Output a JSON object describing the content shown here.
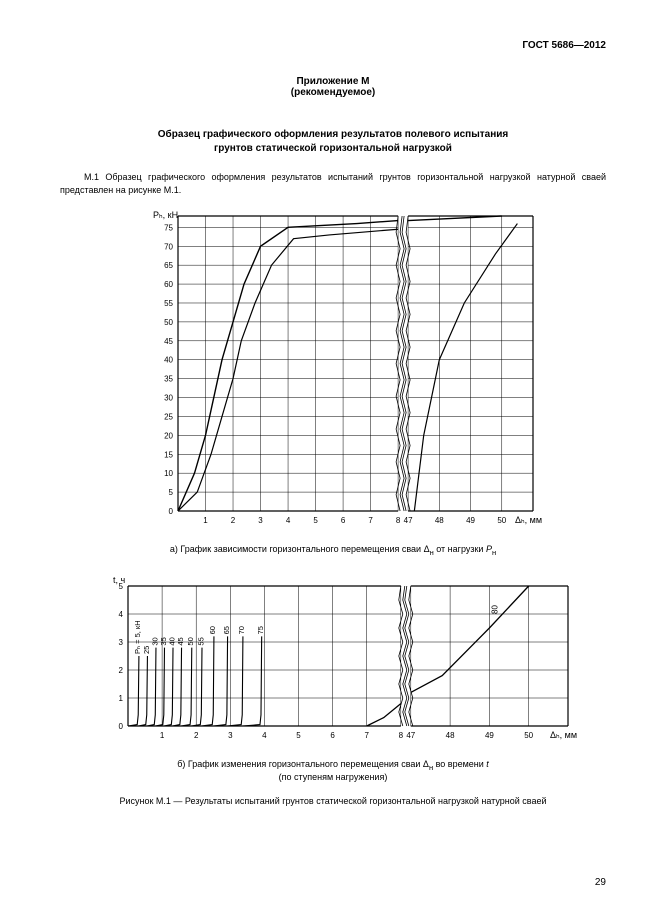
{
  "doc_id": "ГОСТ 5686—2012",
  "appendix": {
    "title": "Приложение М",
    "hint": "(рекомендуемое)"
  },
  "main_title_l1": "Образец графического оформления результатов полевого испытания",
  "main_title_l2": "грунтов статической горизонтальной нагрузкой",
  "para1": "М.1 Образец графического оформления результатов испытаний  грунтов горизонтальной нагрузкой натурной сваей  представлен на рисунке М.1.",
  "chart_a": {
    "type": "line",
    "y_axis_label": "Pₕ, кН",
    "x_axis_label_part": "Δₕ, мм",
    "x_ticks_left": [
      1,
      2,
      3,
      4,
      5,
      6,
      7,
      8
    ],
    "x_ticks_right": [
      47,
      48,
      49,
      50
    ],
    "y_ticks": [
      0,
      5,
      10,
      15,
      20,
      25,
      30,
      35,
      40,
      45,
      50,
      55,
      60,
      65,
      70,
      75
    ],
    "series1": [
      [
        0,
        0
      ],
      [
        0.6,
        10
      ],
      [
        1.0,
        20
      ],
      [
        1.3,
        30
      ],
      [
        1.6,
        40
      ],
      [
        2.0,
        50
      ],
      [
        2.4,
        60
      ],
      [
        3.0,
        70
      ],
      [
        4.0,
        75
      ],
      [
        6.5,
        76
      ],
      [
        8,
        76.8
      ]
    ],
    "series1_right": [
      [
        47,
        76.8
      ],
      [
        48,
        77.2
      ],
      [
        50,
        78
      ]
    ],
    "series2": [
      [
        0,
        0
      ],
      [
        0.7,
        5
      ],
      [
        1.2,
        15
      ],
      [
        1.6,
        25
      ],
      [
        2.0,
        35
      ],
      [
        2.3,
        45
      ],
      [
        2.8,
        55
      ],
      [
        3.4,
        65
      ],
      [
        4.2,
        72
      ],
      [
        5.5,
        73
      ],
      [
        8,
        74.5
      ]
    ],
    "envelope_right": [
      [
        47.2,
        0
      ],
      [
        47.5,
        20
      ],
      [
        48.0,
        40
      ],
      [
        48.8,
        55
      ],
      [
        49.8,
        68
      ],
      [
        50.5,
        76
      ]
    ],
    "grid_color": "#000000",
    "line_color": "#000000",
    "background": "#ffffff",
    "font_size_axis": 8
  },
  "caption_a_pre": "a) График зависимости горизонтального перемещения сваи Δ",
  "caption_a_sub": "н",
  "caption_a_mid": " от нагрузки ",
  "caption_a_p": "P",
  "chart_b": {
    "type": "line",
    "y_axis_label": "t, ч",
    "x_axis_label_part": "Δₕ, мм",
    "x_ticks_left": [
      1,
      2,
      3,
      4,
      5,
      6,
      7,
      8
    ],
    "x_ticks_right": [
      47,
      48,
      49,
      50
    ],
    "y_ticks": [
      0,
      1,
      2,
      3,
      4,
      5
    ],
    "vertical_labels": [
      "Pₕ = 5, кН",
      "25",
      "30",
      "35",
      "40",
      "45",
      "50",
      "55",
      "60",
      "65",
      "70",
      "75"
    ],
    "vertical_runs_x": [
      0.3,
      0.55,
      0.8,
      1.05,
      1.3,
      1.55,
      1.85,
      2.15,
      2.5,
      2.9,
      3.35,
      3.9
    ],
    "vertical_labels_right": [
      "80"
    ],
    "last_curve": [
      [
        7.0,
        0
      ],
      [
        7.5,
        0.3
      ],
      [
        8,
        0.8
      ]
    ],
    "last_curve_right": [
      [
        47,
        1.2
      ],
      [
        47.8,
        1.8
      ],
      [
        49,
        3.5
      ],
      [
        50,
        5
      ]
    ],
    "grid_color": "#000000",
    "line_color": "#000000",
    "background": "#ffffff",
    "font_size_axis": 8
  },
  "caption_b_l1_pre": "б) График изменения горизонтального перемещения сваи Δ",
  "caption_b_l1_sub": "н",
  "caption_b_l1_post": " во времени ",
  "caption_b_l1_t": "t",
  "caption_b_l2": "(по ступеням нагружения)",
  "figure_caption": "Рисунок M.1 — Результаты испытаний  грунтов статической горизонтальной нагрузкой натурной сваей",
  "page_number": "29"
}
